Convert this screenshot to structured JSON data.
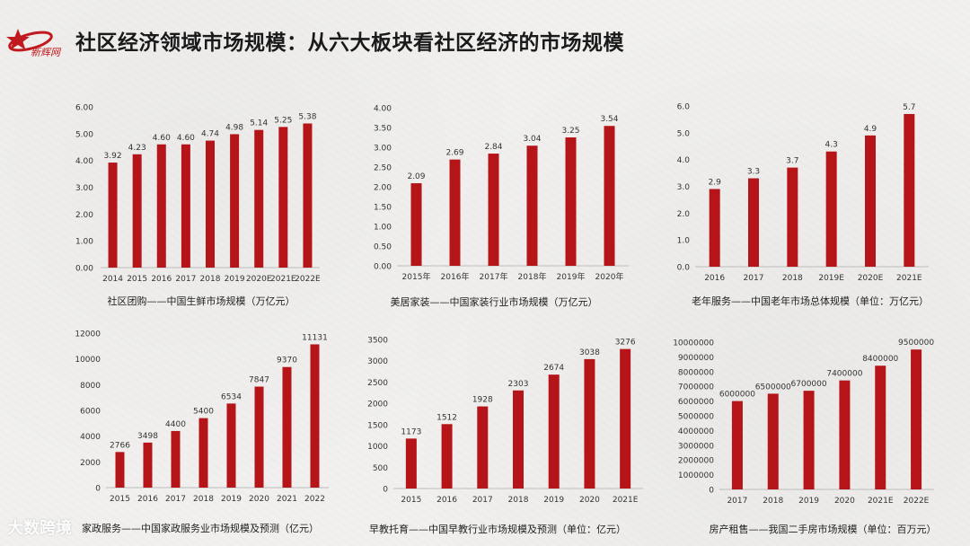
{
  "page": {
    "title": "社区经济领域市场规模：从六大板块看社区经济的市场规模",
    "logo_text": "新辉网",
    "watermark": "大数跨境"
  },
  "colors": {
    "bar": "#b51519",
    "axis": "#bdbdbd",
    "text": "#333333"
  },
  "chart_data": [
    {
      "type": "bar",
      "caption": "社区团购——中国生鲜市场规模（万亿元）",
      "categories": [
        "2014",
        "2015",
        "2016",
        "2017",
        "2018",
        "2019",
        "2020E",
        "2021E",
        "2022E"
      ],
      "values": [
        3.92,
        4.23,
        4.6,
        4.6,
        4.74,
        4.98,
        5.14,
        5.25,
        5.38
      ],
      "value_labels": [
        "3.92",
        "4.23",
        "4.60",
        "4.60",
        "4.74",
        "4.98",
        "5.14",
        "5.25",
        "5.38"
      ],
      "y_ticks": [
        "0.00",
        "1.00",
        "2.00",
        "3.00",
        "4.00",
        "5.00",
        "6.00"
      ],
      "ylim": [
        0,
        6
      ]
    },
    {
      "type": "bar",
      "caption": "美居家装——中国家装行业市场规模（万亿元）",
      "categories": [
        "2015年",
        "2016年",
        "2017年",
        "2018年",
        "2019年",
        "2020年"
      ],
      "values": [
        2.09,
        2.69,
        2.84,
        3.04,
        3.25,
        3.54
      ],
      "value_labels": [
        "2.09",
        "2.69",
        "2.84",
        "3.04",
        "3.25",
        "3.54"
      ],
      "y_ticks": [
        "0.00",
        "0.50",
        "1.00",
        "1.50",
        "2.00",
        "2.50",
        "3.00",
        "3.50",
        "4.00"
      ],
      "ylim": [
        0,
        4
      ]
    },
    {
      "type": "bar",
      "caption": "老年服务——中国老年市场总体规模（单位：万亿元）",
      "categories": [
        "2016",
        "2017",
        "2018",
        "2019E",
        "2020E",
        "2021E"
      ],
      "values": [
        2.9,
        3.3,
        3.7,
        4.3,
        4.9,
        5.7
      ],
      "value_labels": [
        "2.9",
        "3.3",
        "3.7",
        "4.3",
        "4.9",
        "5.7"
      ],
      "y_ticks": [
        "0.0",
        "1.0",
        "2.0",
        "3.0",
        "4.0",
        "5.0",
        "6.0"
      ],
      "ylim": [
        0,
        6
      ]
    },
    {
      "type": "bar",
      "caption": "家政服务——中国家政服务业市场规模及预测（亿元）",
      "categories": [
        "2015",
        "2016",
        "2017",
        "2018",
        "2019",
        "2020",
        "2021",
        "2022"
      ],
      "values": [
        2766,
        3498,
        4400,
        5400,
        6534,
        7847,
        9370,
        11131
      ],
      "value_labels": [
        "2766",
        "3498",
        "4400",
        "5400",
        "6534",
        "7847",
        "9370",
        "11131"
      ],
      "y_ticks": [
        "0",
        "2000",
        "4000",
        "6000",
        "8000",
        "10000",
        "12000"
      ],
      "ylim": [
        0,
        12000
      ]
    },
    {
      "type": "bar",
      "caption": "早教托育——中国早教行业市场规模及预测（单位：亿元）",
      "categories": [
        "2015",
        "2016",
        "2017",
        "2018",
        "2019",
        "2020",
        "2021E"
      ],
      "values": [
        1173,
        1512,
        1928,
        2303,
        2674,
        3038,
        3276
      ],
      "value_labels": [
        "1173",
        "1512",
        "1928",
        "2303",
        "2674",
        "3038",
        "3276"
      ],
      "y_ticks": [
        "0",
        "500",
        "1000",
        "1500",
        "2000",
        "2500",
        "3000",
        "3500"
      ],
      "ylim": [
        0,
        3500
      ]
    },
    {
      "type": "bar",
      "caption": "房产租售——我国二手房市场规模（单位：百万元）",
      "categories": [
        "2017",
        "2018",
        "2019",
        "2020",
        "2021E",
        "2022E"
      ],
      "values": [
        6000000,
        6500000,
        6700000,
        7400000,
        8400000,
        9500000
      ],
      "value_labels": [
        "6000000",
        "6500000",
        "6700000",
        "7400000",
        "8400000",
        "9500000"
      ],
      "y_ticks": [
        "0",
        "1000000",
        "2000000",
        "3000000",
        "4000000",
        "5000000",
        "6000000",
        "7000000",
        "8000000",
        "9000000",
        "10000000"
      ],
      "ylim": [
        0,
        10000000
      ]
    }
  ]
}
